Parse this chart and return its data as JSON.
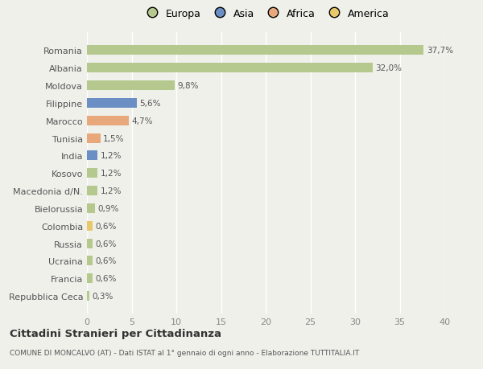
{
  "categories": [
    "Repubblica Ceca",
    "Francia",
    "Ucraina",
    "Russia",
    "Colombia",
    "Bielorussia",
    "Macedonia d/N.",
    "Kosovo",
    "India",
    "Tunisia",
    "Marocco",
    "Filippine",
    "Moldova",
    "Albania",
    "Romania"
  ],
  "values": [
    0.3,
    0.6,
    0.6,
    0.6,
    0.6,
    0.9,
    1.2,
    1.2,
    1.2,
    1.5,
    4.7,
    5.6,
    9.8,
    32.0,
    37.7
  ],
  "colors": [
    "#b5c98e",
    "#b5c98e",
    "#b5c98e",
    "#b5c98e",
    "#e8c86a",
    "#b5c98e",
    "#b5c98e",
    "#b5c98e",
    "#6b8fc4",
    "#e8a87c",
    "#e8a87c",
    "#6b8fc4",
    "#b5c98e",
    "#b5c98e",
    "#b5c98e"
  ],
  "labels": [
    "0,3%",
    "0,6%",
    "0,6%",
    "0,6%",
    "0,6%",
    "0,9%",
    "1,2%",
    "1,2%",
    "1,2%",
    "1,5%",
    "4,7%",
    "5,6%",
    "9,8%",
    "32,0%",
    "37,7%"
  ],
  "xlim": [
    0,
    40
  ],
  "xticks": [
    0,
    5,
    10,
    15,
    20,
    25,
    30,
    35,
    40
  ],
  "legend_labels": [
    "Europa",
    "Asia",
    "Africa",
    "America"
  ],
  "legend_colors": [
    "#b5c98e",
    "#6b8fc4",
    "#e8a87c",
    "#e8c86a"
  ],
  "title": "Cittadini Stranieri per Cittadinanza",
  "subtitle": "COMUNE DI MONCALVO (AT) - Dati ISTAT al 1° gennaio di ogni anno - Elaborazione TUTTITALIA.IT",
  "bg_color": "#f0f0eb",
  "bar_height": 0.55
}
